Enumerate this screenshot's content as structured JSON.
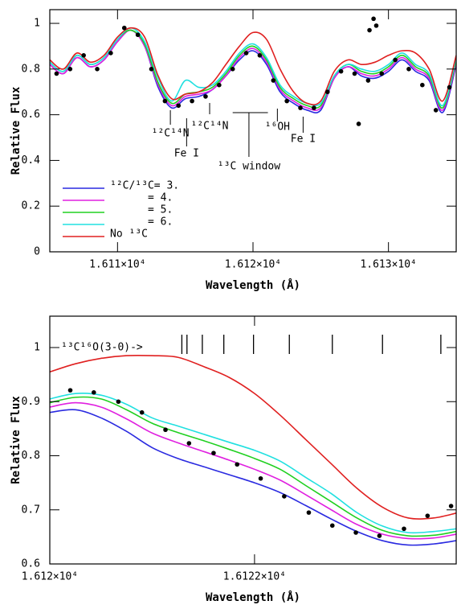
{
  "chart_data": [
    {
      "type": "line",
      "x_label": "Wavelength (Å)",
      "y_label": "Relative Flux",
      "xlim": [
        16105,
        16135
      ],
      "ylim": [
        0,
        1.06
      ],
      "xticks": [
        {
          "value": 16110,
          "label": "1.611×10⁴"
        },
        {
          "value": 16120,
          "label": "1.612×10⁴"
        },
        {
          "value": 16130,
          "label": "1.613×10⁴"
        }
      ],
      "yticks": [
        0,
        0.2,
        0.4,
        0.6,
        0.8,
        1
      ],
      "legend": "lower left",
      "x": [
        16105,
        16106,
        16107,
        16108,
        16109,
        16110,
        16111,
        16112,
        16113,
        16114,
        16115,
        16116,
        16117,
        16118,
        16119,
        16120,
        16121,
        16122,
        16123,
        16124,
        16125,
        16126,
        16127,
        16128,
        16129,
        16130,
        16131,
        16132,
        16133,
        16134,
        16135
      ],
      "series": [
        {
          "name": "¹²C/¹³C= 3.",
          "color": "#2a2ae0",
          "values": [
            0.82,
            0.78,
            0.85,
            0.81,
            0.84,
            0.92,
            0.97,
            0.9,
            0.72,
            0.63,
            0.67,
            0.68,
            0.71,
            0.77,
            0.84,
            0.88,
            0.82,
            0.7,
            0.65,
            0.62,
            0.62,
            0.76,
            0.81,
            0.77,
            0.76,
            0.79,
            0.84,
            0.79,
            0.75,
            0.61,
            0.82
          ]
        },
        {
          "name": "= 4.",
          "color": "#e020e0",
          "values": [
            0.82,
            0.78,
            0.85,
            0.81,
            0.84,
            0.92,
            0.97,
            0.9,
            0.73,
            0.64,
            0.68,
            0.69,
            0.71,
            0.77,
            0.85,
            0.89,
            0.83,
            0.71,
            0.66,
            0.63,
            0.63,
            0.76,
            0.81,
            0.78,
            0.77,
            0.8,
            0.85,
            0.8,
            0.76,
            0.62,
            0.83
          ]
        },
        {
          "name": "= 5.",
          "color": "#20d020",
          "values": [
            0.83,
            0.79,
            0.86,
            0.82,
            0.85,
            0.93,
            0.97,
            0.91,
            0.74,
            0.65,
            0.69,
            0.7,
            0.72,
            0.78,
            0.86,
            0.9,
            0.84,
            0.72,
            0.67,
            0.64,
            0.64,
            0.77,
            0.82,
            0.79,
            0.78,
            0.81,
            0.86,
            0.81,
            0.77,
            0.63,
            0.84
          ]
        },
        {
          "name": "= 6.",
          "color": "#20e0e0",
          "values": [
            0.83,
            0.79,
            0.86,
            0.82,
            0.85,
            0.93,
            0.98,
            0.92,
            0.76,
            0.66,
            0.75,
            0.72,
            0.73,
            0.79,
            0.87,
            0.91,
            0.85,
            0.73,
            0.68,
            0.65,
            0.65,
            0.77,
            0.82,
            0.8,
            0.79,
            0.82,
            0.87,
            0.82,
            0.78,
            0.64,
            0.85
          ]
        },
        {
          "name": "No ¹³C",
          "color": "#e02020",
          "values": [
            0.84,
            0.8,
            0.87,
            0.83,
            0.86,
            0.94,
            0.98,
            0.94,
            0.77,
            0.67,
            0.69,
            0.7,
            0.74,
            0.82,
            0.9,
            0.96,
            0.93,
            0.8,
            0.7,
            0.65,
            0.66,
            0.79,
            0.84,
            0.82,
            0.83,
            0.86,
            0.88,
            0.87,
            0.8,
            0.66,
            0.86
          ]
        }
      ],
      "observed": {
        "x": [
          16105.5,
          16106.5,
          16107.5,
          16108.5,
          16109.5,
          16110.5,
          16111.5,
          16112.5,
          16113.5,
          16114.5,
          16115.5,
          16116.5,
          16117.5,
          16118.5,
          16119.5,
          16120.5,
          16121.5,
          16122.5,
          16123.5,
          16124.5,
          16125.5,
          16126.5,
          16127.5,
          16128.5,
          16129.5,
          16130.5,
          16131.5,
          16132.5,
          16133.5,
          16134.5,
          16127.8,
          16128.6,
          16128.9,
          16129.1
        ],
        "y": [
          0.78,
          0.8,
          0.86,
          0.8,
          0.87,
          0.98,
          0.95,
          0.8,
          0.66,
          0.64,
          0.66,
          0.68,
          0.73,
          0.8,
          0.87,
          0.86,
          0.75,
          0.66,
          0.63,
          0.63,
          0.7,
          0.79,
          0.78,
          0.75,
          0.78,
          0.84,
          0.8,
          0.73,
          0.62,
          0.72,
          0.56,
          0.97,
          1.02,
          0.99
        ]
      },
      "annotations": [
        {
          "text": "¹²C¹⁴N",
          "x": 16113.9
        },
        {
          "text": "Fe I",
          "x": 16115.1
        },
        {
          "text": "¹²C¹⁴N",
          "x": 16116.8
        },
        {
          "text": "¹³C window",
          "x": 16119.7,
          "span": [
            16118.5,
            16121.1
          ]
        },
        {
          "text": "¹⁶OH",
          "x": 16121.8
        },
        {
          "text": "Fe I",
          "x": 16123.7
        }
      ]
    },
    {
      "type": "line",
      "x_label": "Wavelength (Å)",
      "y_label": "Relative Flux",
      "xlim": [
        16120,
        16123.97
      ],
      "ylim": [
        0.6,
        1.058
      ],
      "xticks": [
        {
          "value": 16120,
          "label": "1.612×10⁴"
        },
        {
          "value": 16122,
          "label": "1.6122×10⁴"
        }
      ],
      "yticks": [
        0.6,
        0.7,
        0.8,
        0.9,
        1
      ],
      "x": [
        16120,
        16120.25,
        16120.5,
        16120.75,
        16121,
        16121.25,
        16121.5,
        16121.75,
        16122,
        16122.25,
        16122.5,
        16122.75,
        16123,
        16123.25,
        16123.5,
        16123.75,
        16123.97
      ],
      "series": [
        {
          "color": "#2a2ae0",
          "values": [
            0.88,
            0.885,
            0.87,
            0.845,
            0.815,
            0.795,
            0.78,
            0.765,
            0.75,
            0.732,
            0.708,
            0.683,
            0.66,
            0.643,
            0.635,
            0.637,
            0.643
          ]
        },
        {
          "color": "#e020e0",
          "values": [
            0.89,
            0.898,
            0.89,
            0.868,
            0.842,
            0.824,
            0.808,
            0.792,
            0.775,
            0.755,
            0.728,
            0.7,
            0.673,
            0.655,
            0.647,
            0.648,
            0.655
          ]
        },
        {
          "color": "#20d020",
          "values": [
            0.898,
            0.908,
            0.905,
            0.885,
            0.86,
            0.843,
            0.828,
            0.812,
            0.795,
            0.775,
            0.745,
            0.715,
            0.685,
            0.662,
            0.652,
            0.653,
            0.66
          ]
        },
        {
          "color": "#20e0e0",
          "values": [
            0.905,
            0.915,
            0.912,
            0.895,
            0.87,
            0.855,
            0.84,
            0.825,
            0.81,
            0.79,
            0.76,
            0.73,
            0.695,
            0.67,
            0.658,
            0.66,
            0.665
          ]
        },
        {
          "color": "#e02020",
          "values": [
            0.955,
            0.97,
            0.98,
            0.985,
            0.985,
            0.982,
            0.965,
            0.945,
            0.915,
            0.875,
            0.83,
            0.785,
            0.74,
            0.705,
            0.685,
            0.685,
            0.694
          ]
        }
      ],
      "observed": {
        "x": [
          16120.2,
          16120.43,
          16120.67,
          16120.9,
          16121.13,
          16121.36,
          16121.6,
          16121.83,
          16122.06,
          16122.29,
          16122.53,
          16122.76,
          16122.99,
          16123.22,
          16123.46,
          16123.69,
          16123.92
        ],
        "y": [
          0.921,
          0.917,
          0.9,
          0.88,
          0.848,
          0.823,
          0.805,
          0.784,
          0.758,
          0.725,
          0.695,
          0.671,
          0.658,
          0.652,
          0.665,
          0.689,
          0.707
        ]
      },
      "line_list": {
        "text": "¹³C¹⁶O(3-0)->",
        "x": [
          16121.29,
          16121.34,
          16121.49,
          16121.7,
          16121.99,
          16122.34,
          16122.76,
          16123.25,
          16123.82
        ]
      }
    }
  ]
}
